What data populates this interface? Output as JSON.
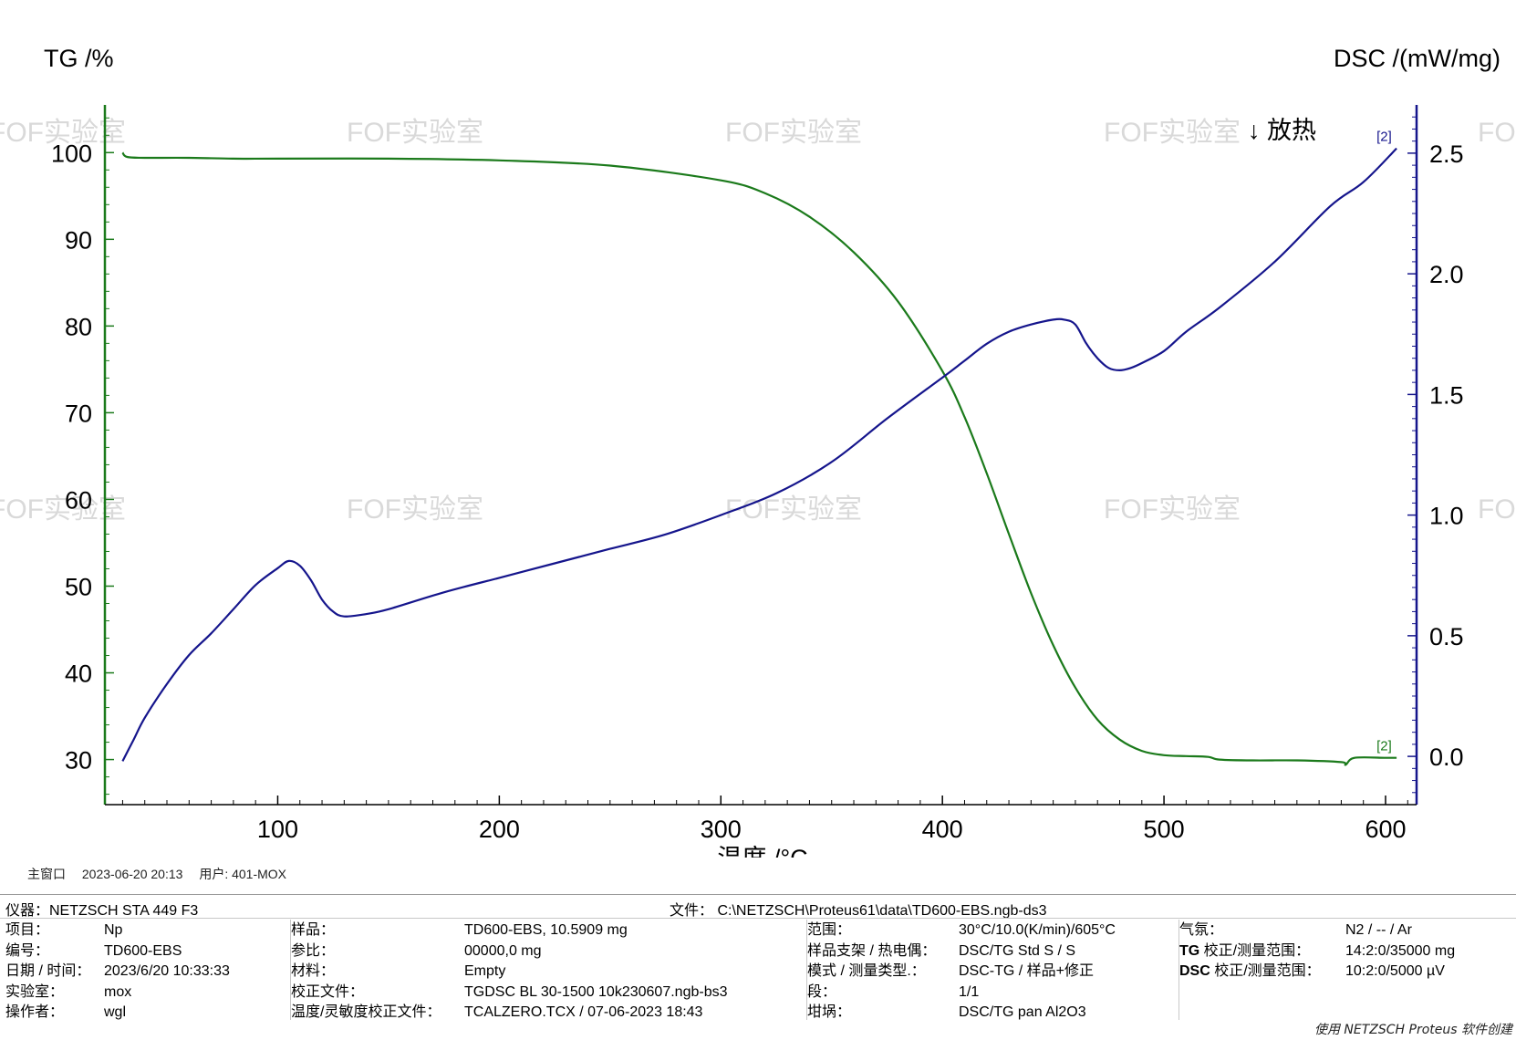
{
  "chart_data": {
    "type": "line",
    "xlabel": "温度 /°C",
    "ylabel_left": "TG /%",
    "ylabel_right": "DSC /(mW/mg)",
    "xlim": [
      22,
      614
    ],
    "ylim_left": [
      24.8,
      105.5
    ],
    "ylim_right": [
      -0.2,
      2.7
    ],
    "x_ticks": [
      100,
      200,
      300,
      400,
      500,
      600
    ],
    "y_ticks_left": [
      30,
      40,
      50,
      60,
      70,
      80,
      90,
      100
    ],
    "y_ticks_right": [
      0.0,
      0.5,
      1.0,
      1.5,
      2.0,
      2.5
    ],
    "y_ticks_right_labels": [
      "0.0",
      "0.5",
      "1.0",
      "1.5",
      "2.0",
      "2.5"
    ],
    "annotation_exo": "↓ 放热",
    "series": [
      {
        "axis": "left",
        "color": "#1b7a1b",
        "marker": "[2]",
        "x": [
          30,
          32,
          40,
          60,
          80,
          100,
          150,
          200,
          250,
          300,
          320,
          340,
          360,
          380,
          400,
          410,
          420,
          430,
          440,
          450,
          460,
          470,
          480,
          490,
          500,
          510,
          520,
          525,
          540,
          560,
          580,
          582,
          586,
          600,
          605
        ],
        "y": [
          100,
          99.5,
          99.4,
          99.4,
          99.3,
          99.3,
          99.3,
          99.1,
          98.5,
          96.8,
          95.3,
          92.6,
          88.5,
          82.8,
          74.8,
          69.5,
          63.0,
          56.0,
          49.2,
          43.2,
          38.3,
          34.6,
          32.3,
          31.0,
          30.5,
          30.4,
          30.3,
          30.0,
          29.9,
          29.9,
          29.7,
          29.4,
          30.2,
          30.2,
          30.2
        ]
      },
      {
        "axis": "right",
        "color": "#15158c",
        "marker": "[2]",
        "x": [
          30,
          35,
          40,
          50,
          60,
          70,
          80,
          90,
          100,
          105,
          110,
          115,
          120,
          125,
          130,
          140,
          150,
          175,
          200,
          225,
          250,
          275,
          300,
          325,
          350,
          375,
          400,
          410,
          420,
          430,
          440,
          450,
          455,
          460,
          465,
          470,
          475,
          480,
          485,
          490,
          500,
          510,
          525,
          550,
          575,
          590,
          605
        ],
        "y": [
          -0.02,
          0.07,
          0.16,
          0.3,
          0.42,
          0.51,
          0.61,
          0.71,
          0.78,
          0.81,
          0.79,
          0.73,
          0.65,
          0.6,
          0.58,
          0.59,
          0.61,
          0.68,
          0.74,
          0.8,
          0.86,
          0.92,
          1.0,
          1.09,
          1.22,
          1.4,
          1.57,
          1.64,
          1.71,
          1.76,
          1.79,
          1.81,
          1.81,
          1.79,
          1.71,
          1.65,
          1.61,
          1.6,
          1.61,
          1.63,
          1.68,
          1.76,
          1.86,
          2.05,
          2.28,
          2.38,
          2.52
        ]
      }
    ]
  },
  "watermark": "FOF实验室",
  "window_info": {
    "window": "主窗口",
    "datetime": "2023-06-20 20:13",
    "user": "用户: 401-MOX"
  },
  "info": {
    "instrument": "仪器：NETZSCH STA 449 F3",
    "file": "文件：  C:\\NETZSCH\\Proteus61\\data\\TD600-EBS.ngb-ds3",
    "col1": [
      {
        "label": "项目：",
        "value": "Np"
      },
      {
        "label": "编号：",
        "value": "TD600-EBS"
      },
      {
        "label": "日期 / 时间：",
        "value": "2023/6/20 10:33:33"
      },
      {
        "label": "实验室：",
        "value": "mox"
      },
      {
        "label": "操作者：",
        "value": "wgl"
      }
    ],
    "col2": [
      {
        "label": "样品：",
        "value": "TD600-EBS, 10.5909 mg"
      },
      {
        "label": "参比：",
        "value": "00000,0 mg"
      },
      {
        "label": "材料：",
        "value": "Empty"
      },
      {
        "label": "校正文件：",
        "value": "TGDSC BL 30-1500 10k230607.ngb-bs3"
      },
      {
        "label": "温度/灵敏度校正文件：",
        "value": "TCALZERO.TCX / 07-06-2023 18:43"
      }
    ],
    "col3": [
      {
        "label": "范围：",
        "value": "30°C/10.0(K/min)/605°C"
      },
      {
        "label": "样品支架 / 热电偶：",
        "value": "DSC/TG Std S / S"
      },
      {
        "label": "模式 / 测量类型.：",
        "value": "DSC-TG / 样品+修正"
      },
      {
        "label": "段：",
        "value": "1/1"
      },
      {
        "label": "坩埚：",
        "value": "DSC/TG pan Al2O3"
      }
    ],
    "col4": [
      {
        "label": "气氛：",
        "value": "N2 / -- / Ar",
        "bold": ""
      },
      {
        "label": "校正/测量范围：",
        "value": "14:2:0/35000 mg",
        "bold": "TG"
      },
      {
        "label": "校正/测量范围：",
        "value": "10:2:0/5000 µV",
        "bold": "DSC"
      }
    ]
  },
  "footer": "使用 NETZSCH Proteus 软件创建"
}
